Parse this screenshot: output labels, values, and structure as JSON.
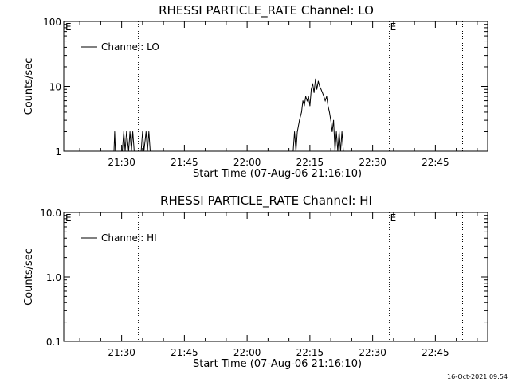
{
  "footer": {
    "timestamp": "16-Oct-2021 09:54"
  },
  "chart_data": [
    {
      "type": "line",
      "title": "RHESSI PARTICLE_RATE Channel: LO",
      "xlabel": "Start Time (07-Aug-06 21:16:10)",
      "ylabel": "Counts/sec",
      "yscale": "log",
      "ylim": [
        1,
        100
      ],
      "ytick_labels": [
        "1",
        "10",
        "100"
      ],
      "xtick_labels": [
        "21:30",
        "21:45",
        "22:00",
        "22:15",
        "22:30",
        "22:45"
      ],
      "xlim": [
        "21:16:10",
        "22:57:30"
      ],
      "vlines": [
        {
          "x": "21:34:00",
          "label": ""
        },
        {
          "x": "22:34:00",
          "label": "E"
        },
        {
          "x": "22:51:30",
          "label": ""
        }
      ],
      "left_marker_label": "E",
      "legend_position": "top-left",
      "series": [
        {
          "name": "Channel: LO",
          "x": [
            "21:27:20",
            "21:28:10",
            "21:28:20",
            "21:28:30",
            "21:29:00",
            "21:30:10",
            "21:30:30",
            "21:30:50",
            "21:31:10",
            "21:31:40",
            "21:32:00",
            "21:32:20",
            "21:32:40",
            "21:33:00",
            "21:33:20",
            "21:34:40",
            "21:35:00",
            "21:35:20",
            "21:35:50",
            "21:36:10",
            "21:36:30",
            "21:36:50",
            "22:11:00",
            "22:11:20",
            "22:11:40",
            "22:12:00",
            "22:12:30",
            "22:13:00",
            "22:13:20",
            "22:13:40",
            "22:14:00",
            "22:14:20",
            "22:14:40",
            "22:15:00",
            "22:15:20",
            "22:15:40",
            "22:16:00",
            "22:16:20",
            "22:16:40",
            "22:17:00",
            "22:17:20",
            "22:17:40",
            "22:18:00",
            "22:18:20",
            "22:18:40",
            "22:19:00",
            "22:19:20",
            "22:19:40",
            "22:20:00",
            "22:20:20",
            "22:20:40",
            "22:21:00",
            "22:21:20",
            "22:21:40",
            "22:22:00",
            "22:22:20",
            "22:22:40",
            "22:23:00",
            "22:23:40"
          ],
          "values": [
            1,
            1,
            2,
            1,
            1,
            1,
            2,
            1,
            2,
            1,
            2,
            1,
            2,
            1,
            1,
            1,
            2,
            1,
            2,
            1,
            2,
            1,
            1,
            2,
            1,
            2,
            3,
            4,
            6,
            5,
            7,
            6,
            7,
            5,
            9,
            11,
            8,
            13,
            9,
            12,
            10,
            9,
            8,
            7,
            6,
            7,
            5,
            4,
            3,
            2,
            3,
            1,
            2,
            1,
            2,
            1,
            2,
            1,
            1
          ]
        }
      ]
    },
    {
      "type": "line",
      "title": "RHESSI PARTICLE_RATE Channel: HI",
      "xlabel": "Start Time (07-Aug-06 21:16:10)",
      "ylabel": "Counts/sec",
      "yscale": "log",
      "ylim": [
        0.1,
        10
      ],
      "ytick_labels": [
        "0.1",
        "1.0",
        "10.0"
      ],
      "xtick_labels": [
        "21:30",
        "21:45",
        "22:00",
        "22:15",
        "22:30",
        "22:45"
      ],
      "xlim": [
        "21:16:10",
        "22:57:30"
      ],
      "vlines": [
        {
          "x": "21:34:00",
          "label": ""
        },
        {
          "x": "22:34:00",
          "label": "E"
        },
        {
          "x": "22:51:30",
          "label": ""
        }
      ],
      "left_marker_label": "E",
      "legend_position": "top-left",
      "series": [
        {
          "name": "Channel: HI",
          "x": [],
          "values": []
        }
      ]
    }
  ]
}
